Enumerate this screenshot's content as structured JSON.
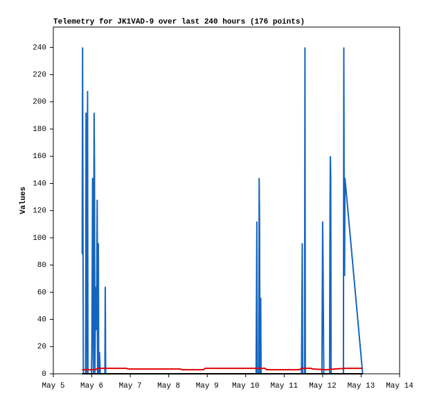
{
  "chart_data": {
    "type": "line",
    "title": "Telemetry for JK1VAD-9 over last 240 hours (176 points)",
    "y_label": "Values",
    "xlim": [
      5,
      14
    ],
    "xticks": [
      {
        "value": 5,
        "label": "May 5"
      },
      {
        "value": 6,
        "label": "May 6"
      },
      {
        "value": 7,
        "label": "May 7"
      },
      {
        "value": 8,
        "label": "May 8"
      },
      {
        "value": 9,
        "label": "May 9"
      },
      {
        "value": 10,
        "label": "May 10"
      },
      {
        "value": 11,
        "label": "May 11"
      },
      {
        "value": 12,
        "label": "May 12"
      },
      {
        "value": 13,
        "label": "May 13"
      },
      {
        "value": 14,
        "label": "May 14"
      }
    ],
    "ylim": [
      0,
      255
    ],
    "yticks": [
      0,
      20,
      40,
      60,
      80,
      100,
      120,
      140,
      160,
      180,
      200,
      220,
      240
    ],
    "series": [
      {
        "color": "#1565c0",
        "x": [
          5.75,
          5.76,
          5.78,
          5.84,
          5.85,
          5.86,
          5.89,
          5.9,
          5.99,
          6.0,
          6.01,
          6.02,
          6.04,
          6.06,
          6.07,
          6.08,
          6.1,
          6.12,
          6.14,
          6.15,
          6.17,
          6.18,
          6.2,
          6.22,
          6.34,
          6.35,
          6.36,
          10.27,
          10.28,
          10.29,
          10.3,
          10.34,
          10.35,
          10.36,
          10.37,
          10.39,
          10.4,
          11.45,
          11.46,
          11.47,
          11.48,
          11.53,
          11.54,
          11.55,
          11.98,
          11.99,
          12.0,
          12.01,
          12.02,
          12.03,
          12.18,
          12.19,
          12.2,
          12.21,
          12.22,
          12.54,
          12.55,
          12.56,
          12.57,
          12.58,
          13.04
        ],
        "values": [
          88,
          240,
          0,
          0,
          192,
          0,
          208,
          0,
          0,
          16,
          72,
          144,
          0,
          192,
          152,
          0,
          64,
          32,
          128,
          0,
          96,
          0,
          16,
          0,
          0,
          64,
          0,
          0,
          56,
          112,
          0,
          0,
          144,
          112,
          0,
          56,
          0,
          0,
          48,
          96,
          0,
          0,
          240,
          0,
          0,
          56,
          112,
          80,
          40,
          0,
          0,
          112,
          160,
          144,
          0,
          0,
          240,
          120,
          72,
          144,
          0
        ]
      },
      {
        "color": "#e00000",
        "x": [
          5.75,
          6.1,
          6.15,
          6.9,
          6.95,
          8.3,
          8.35,
          8.9,
          8.95,
          10.5,
          10.55,
          11.4,
          11.45,
          11.7,
          11.75,
          12.1,
          12.3,
          12.6,
          13.04
        ],
        "values": [
          3,
          3,
          4,
          4,
          3.5,
          3.5,
          3,
          3,
          4,
          4,
          3,
          3,
          4,
          4,
          3.5,
          3,
          3.5,
          4,
          4
        ]
      },
      {
        "color": "#000000",
        "x": [
          5.75,
          13.04
        ],
        "values": [
          0,
          0
        ]
      }
    ]
  }
}
